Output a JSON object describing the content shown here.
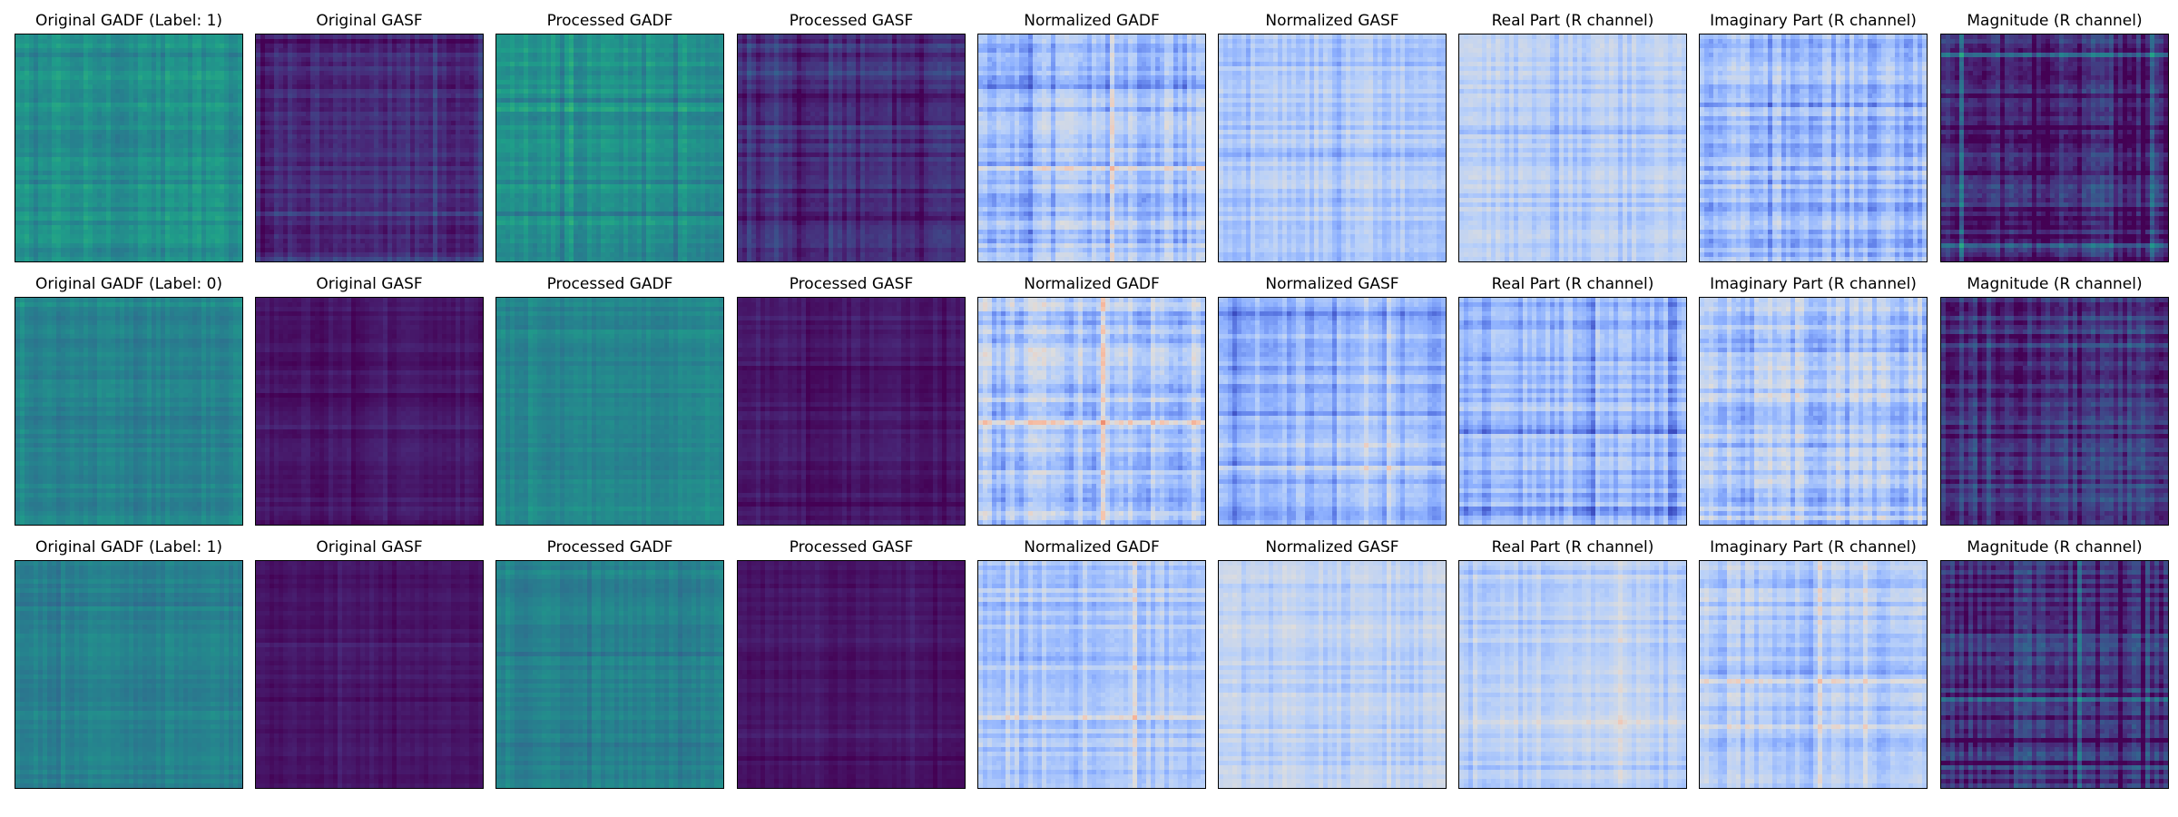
{
  "figure": {
    "rows": [
      {
        "label": "1",
        "panels": [
          {
            "title": "Original GADF (Label: 1)",
            "colormap": "viridis",
            "base_level": 0.5,
            "spread": 0.1
          },
          {
            "title": "Original GASF",
            "colormap": "viridis",
            "base_level": 0.12,
            "spread": 0.1
          },
          {
            "title": "Processed GADF",
            "colormap": "viridis",
            "base_level": 0.5,
            "spread": 0.1
          },
          {
            "title": "Processed GASF",
            "colormap": "viridis",
            "base_level": 0.12,
            "spread": 0.1
          },
          {
            "title": "Normalized GADF",
            "colormap": "coolwarm",
            "base_level": 0.3,
            "spread": 0.18
          },
          {
            "title": "Normalized GASF",
            "colormap": "coolwarm",
            "base_level": 0.36,
            "spread": 0.12
          },
          {
            "title": "Real Part (R channel)",
            "colormap": "coolwarm",
            "base_level": 0.36,
            "spread": 0.12
          },
          {
            "title": "Imaginary Part (R channel)",
            "colormap": "coolwarm",
            "base_level": 0.3,
            "spread": 0.18
          },
          {
            "title": "Magnitude (R channel)",
            "colormap": "viridis",
            "base_level": 0.12,
            "spread": 0.22
          }
        ]
      },
      {
        "label": "0",
        "panels": [
          {
            "title": "Original GADF (Label: 0)",
            "colormap": "viridis",
            "base_level": 0.45,
            "spread": 0.07
          },
          {
            "title": "Original GASF",
            "colormap": "viridis",
            "base_level": 0.06,
            "spread": 0.05
          },
          {
            "title": "Processed GADF",
            "colormap": "viridis",
            "base_level": 0.45,
            "spread": 0.07
          },
          {
            "title": "Processed GASF",
            "colormap": "viridis",
            "base_level": 0.06,
            "spread": 0.05
          },
          {
            "title": "Normalized GADF",
            "colormap": "coolwarm",
            "base_level": 0.34,
            "spread": 0.2
          },
          {
            "title": "Normalized GASF",
            "colormap": "coolwarm",
            "base_level": 0.28,
            "spread": 0.14
          },
          {
            "title": "Real Part (R channel)",
            "colormap": "coolwarm",
            "base_level": 0.28,
            "spread": 0.14
          },
          {
            "title": "Imaginary Part (R channel)",
            "colormap": "coolwarm",
            "base_level": 0.34,
            "spread": 0.2
          },
          {
            "title": "Magnitude (R channel)",
            "colormap": "viridis",
            "base_level": 0.15,
            "spread": 0.2
          }
        ]
      },
      {
        "label": "1",
        "panels": [
          {
            "title": "Original GADF (Label: 1)",
            "colormap": "viridis",
            "base_level": 0.44,
            "spread": 0.06
          },
          {
            "title": "Original GASF",
            "colormap": "viridis",
            "base_level": 0.05,
            "spread": 0.04
          },
          {
            "title": "Processed GADF",
            "colormap": "viridis",
            "base_level": 0.44,
            "spread": 0.06
          },
          {
            "title": "Processed GASF",
            "colormap": "viridis",
            "base_level": 0.05,
            "spread": 0.04
          },
          {
            "title": "Normalized GADF",
            "colormap": "coolwarm",
            "base_level": 0.36,
            "spread": 0.14
          },
          {
            "title": "Normalized GASF",
            "colormap": "coolwarm",
            "base_level": 0.38,
            "spread": 0.1
          },
          {
            "title": "Real Part (R channel)",
            "colormap": "coolwarm",
            "base_level": 0.38,
            "spread": 0.1
          },
          {
            "title": "Imaginary Part (R channel)",
            "colormap": "coolwarm",
            "base_level": 0.36,
            "spread": 0.14
          },
          {
            "title": "Magnitude (R channel)",
            "colormap": "viridis",
            "base_level": 0.13,
            "spread": 0.2
          }
        ]
      }
    ]
  }
}
